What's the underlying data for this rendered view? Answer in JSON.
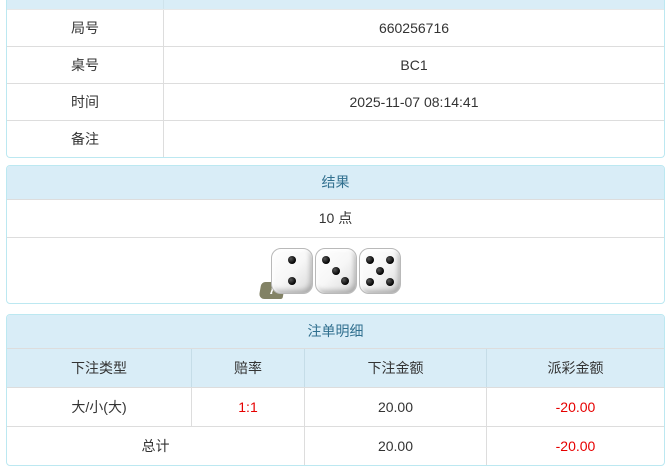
{
  "colors": {
    "header_bg": "#d9edf7",
    "header_text": "#31708f",
    "panel_border": "#bce8f1",
    "divider": "#dddddd",
    "text": "#333333",
    "negative_red": "#e60000"
  },
  "info": {
    "rows": [
      {
        "label": "局号",
        "value": "660256716"
      },
      {
        "label": "桌号",
        "value": "BC1"
      },
      {
        "label": "时间",
        "value": "2025-11-07 08:14:41"
      },
      {
        "label": "备注",
        "value": ""
      }
    ]
  },
  "result": {
    "title": "结果",
    "points": "10 点",
    "dice": [
      2,
      3,
      5
    ],
    "info_icon": "i"
  },
  "bets": {
    "title": "注单明细",
    "columns": [
      "下注类型",
      "赔率",
      "下注金额",
      "派彩金额"
    ],
    "rows": [
      {
        "type": "大/小(大)",
        "odds": "1:1",
        "amount": "20.00",
        "payout": "-20.00"
      }
    ],
    "total": {
      "label": "总计",
      "amount": "20.00",
      "payout": "-20.00"
    }
  }
}
